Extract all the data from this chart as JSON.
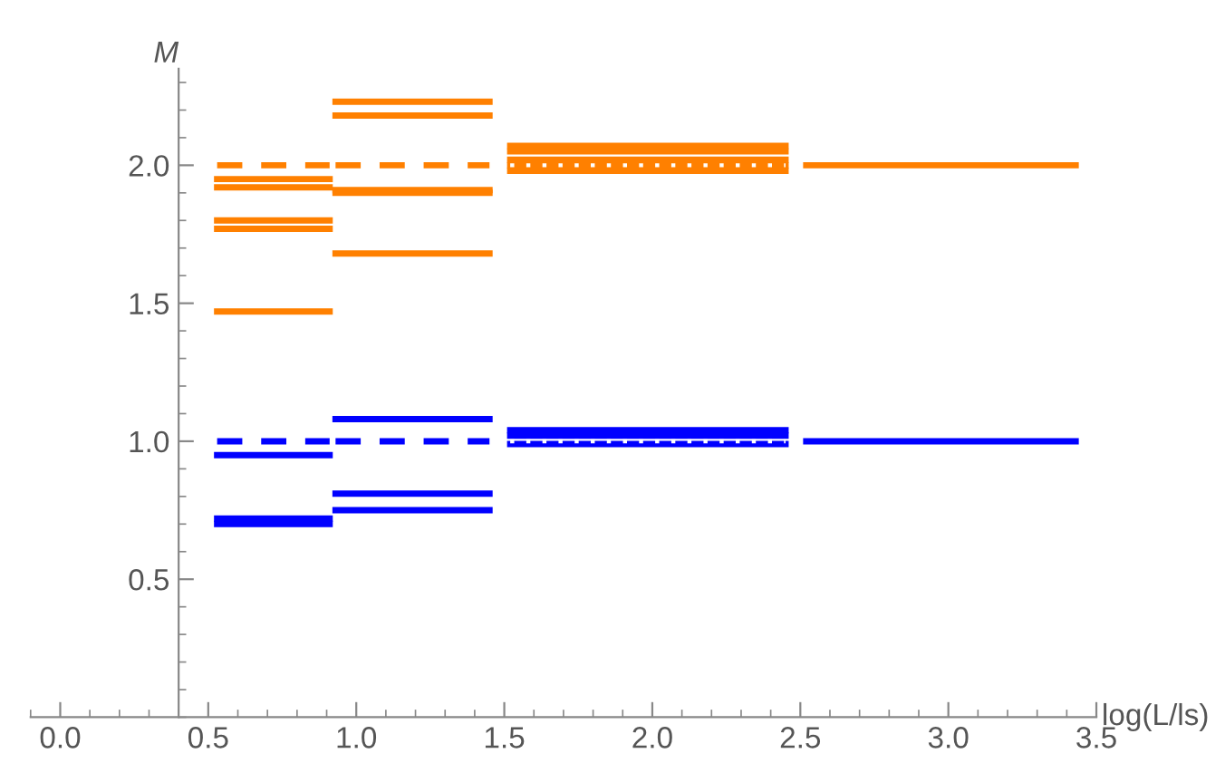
{
  "chart_data": {
    "type": "line",
    "xlabel": "log(L/ls)",
    "ylabel": "M",
    "marker": "none",
    "grid": false,
    "legend": false,
    "xlim": [
      -0.1,
      3.5
    ],
    "ylim": [
      0,
      2.35
    ],
    "xticks": [
      {
        "value": 0,
        "label": "0.0"
      },
      {
        "value": 0.5,
        "label": "0.5"
      },
      {
        "value": 1,
        "label": "1.0"
      },
      {
        "value": 1.5,
        "label": "1.5"
      },
      {
        "value": 2,
        "label": "2.0"
      },
      {
        "value": 2.5,
        "label": "2.5"
      },
      {
        "value": 3,
        "label": "3.0"
      },
      {
        "value": 3.5,
        "label": "3.5"
      }
    ],
    "yticks": [
      {
        "value": 0.5,
        "label": "0.5"
      },
      {
        "value": 1,
        "label": "1.0"
      },
      {
        "value": 1.5,
        "label": "1.5"
      },
      {
        "value": 2,
        "label": "2.0"
      }
    ],
    "series": [
      {
        "color": "#ff8000",
        "x": [
          0.53,
          0.91
        ],
        "values": [
          2.0,
          2.0
        ],
        "line_style": "dashed"
      },
      {
        "color": "#ff8000",
        "x": [
          0.53,
          0.91
        ],
        "values": [
          1.95,
          1.95
        ]
      },
      {
        "color": "#ff8000",
        "x": [
          0.53,
          0.91
        ],
        "values": [
          1.92,
          1.92
        ]
      },
      {
        "color": "#ff8000",
        "x": [
          0.53,
          0.91
        ],
        "values": [
          1.8,
          1.8
        ]
      },
      {
        "color": "#ff8000",
        "x": [
          0.53,
          0.91
        ],
        "values": [
          1.77,
          1.77
        ]
      },
      {
        "color": "#ff8000",
        "x": [
          0.53,
          0.91
        ],
        "values": [
          1.47,
          1.47
        ]
      },
      {
        "color": "#ff8000",
        "x": [
          0.93,
          1.45
        ],
        "values": [
          2.23,
          2.23
        ]
      },
      {
        "color": "#ff8000",
        "x": [
          0.93,
          1.45
        ],
        "values": [
          2.18,
          2.18
        ]
      },
      {
        "color": "#ff8000",
        "x": [
          0.93,
          1.45
        ],
        "values": [
          2.0,
          2.0
        ],
        "line_style": "dashed"
      },
      {
        "color": "#ff8000",
        "x": [
          0.93,
          1.45
        ],
        "values": [
          1.91,
          1.91
        ]
      },
      {
        "color": "#ff8000",
        "x": [
          0.93,
          1.45
        ],
        "values": [
          1.9,
          1.9
        ]
      },
      {
        "color": "#ff8000",
        "x": [
          0.93,
          1.45
        ],
        "values": [
          1.68,
          1.68
        ]
      },
      {
        "color": "#ff8000",
        "x": [
          1.52,
          2.45
        ],
        "values": [
          2.07,
          2.07
        ]
      },
      {
        "color": "#ff8000",
        "x": [
          1.52,
          2.45
        ],
        "values": [
          2.05,
          2.05
        ]
      },
      {
        "color": "#ff8000",
        "x": [
          1.52,
          2.45
        ],
        "values": [
          2.02,
          2.02
        ]
      },
      {
        "color": "#ff8000",
        "x": [
          1.52,
          2.45
        ],
        "values": [
          2.0,
          2.0
        ]
      },
      {
        "color": "#ff8000",
        "x": [
          1.52,
          2.45
        ],
        "values": [
          1.98,
          1.98
        ]
      },
      {
        "color": "#ffffff",
        "x": [
          1.52,
          2.45
        ],
        "values": [
          2.0,
          2.0
        ],
        "line_style": "dotted"
      },
      {
        "color": "#ff8000",
        "x": [
          2.52,
          3.43
        ],
        "values": [
          2.0,
          2.0
        ]
      },
      {
        "color": "#0000ff",
        "x": [
          0.53,
          0.91
        ],
        "values": [
          1.0,
          1.0
        ],
        "line_style": "dashed"
      },
      {
        "color": "#0000ff",
        "x": [
          0.53,
          0.91
        ],
        "values": [
          0.95,
          0.95
        ]
      },
      {
        "color": "#0000ff",
        "x": [
          0.53,
          0.91
        ],
        "values": [
          0.72,
          0.72
        ]
      },
      {
        "color": "#0000ff",
        "x": [
          0.53,
          0.91
        ],
        "values": [
          0.7,
          0.7
        ]
      },
      {
        "color": "#0000ff",
        "x": [
          0.93,
          1.45
        ],
        "values": [
          1.08,
          1.08
        ]
      },
      {
        "color": "#0000ff",
        "x": [
          0.93,
          1.45
        ],
        "values": [
          1.0,
          1.0
        ],
        "line_style": "dashed"
      },
      {
        "color": "#0000ff",
        "x": [
          0.93,
          1.45
        ],
        "values": [
          0.81,
          0.81
        ]
      },
      {
        "color": "#0000ff",
        "x": [
          0.93,
          1.45
        ],
        "values": [
          0.75,
          0.75
        ]
      },
      {
        "color": "#0000ff",
        "x": [
          1.52,
          2.45
        ],
        "values": [
          1.04,
          1.04
        ]
      },
      {
        "color": "#0000ff",
        "x": [
          1.52,
          2.45
        ],
        "values": [
          1.02,
          1.02
        ]
      },
      {
        "color": "#0000ff",
        "x": [
          1.52,
          2.45
        ],
        "values": [
          0.99,
          0.99
        ]
      },
      {
        "color": "#ffffff",
        "x": [
          1.52,
          2.45
        ],
        "values": [
          1.0,
          1.0
        ],
        "line_style": "dotted"
      },
      {
        "color": "#0000ff",
        "x": [
          2.52,
          3.43
        ],
        "values": [
          1.0,
          1.0
        ]
      }
    ]
  }
}
